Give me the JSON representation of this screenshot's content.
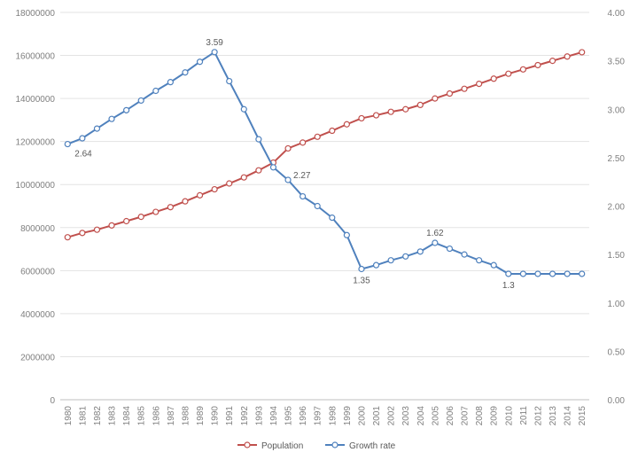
{
  "chart_data": {
    "type": "line",
    "title": "",
    "xlabel": "",
    "ylabel": "",
    "categories": [
      "1980",
      "1981",
      "1982",
      "1983",
      "1984",
      "1985",
      "1986",
      "1987",
      "1988",
      "1989",
      "1990",
      "1991",
      "1992",
      "1993",
      "1994",
      "1995",
      "1996",
      "1997",
      "1998",
      "1999",
      "2000",
      "2001",
      "2002",
      "2003",
      "2004",
      "2005",
      "2006",
      "2007",
      "2008",
      "2009",
      "2010",
      "2011",
      "2012",
      "2013",
      "2014",
      "2015"
    ],
    "y_left": {
      "min": 0,
      "max": 18000000,
      "ticks": [
        "0",
        "2000000",
        "4000000",
        "6000000",
        "8000000",
        "10000000",
        "12000000",
        "14000000",
        "16000000",
        "18000000"
      ]
    },
    "y_right": {
      "min": 0,
      "max": 4,
      "ticks": [
        "0.00",
        "0.50",
        "1.00",
        "1.50",
        "2.00",
        "2.50",
        "3.00",
        "3.50",
        "4.00"
      ]
    },
    "grid": true,
    "legend_position": "bottom",
    "series": [
      {
        "name": "Population",
        "axis": "left",
        "color": "#c0504d",
        "values": [
          7550000,
          7750000,
          7900000,
          8100000,
          8300000,
          8500000,
          8730000,
          8950000,
          9220000,
          9500000,
          9780000,
          10050000,
          10330000,
          10660000,
          11020000,
          11680000,
          11950000,
          12220000,
          12500000,
          12800000,
          13080000,
          13220000,
          13380000,
          13500000,
          13700000,
          14000000,
          14230000,
          14450000,
          14680000,
          14920000,
          15150000,
          15350000,
          15550000,
          15750000,
          15950000,
          16150000
        ]
      },
      {
        "name": "Growth rate",
        "axis": "right",
        "color": "#4f81bd",
        "values": [
          2.64,
          2.7,
          2.8,
          2.9,
          2.99,
          3.09,
          3.19,
          3.28,
          3.38,
          3.49,
          3.59,
          3.29,
          3.0,
          2.69,
          2.4,
          2.27,
          2.1,
          2.0,
          1.88,
          1.7,
          1.35,
          1.39,
          1.44,
          1.48,
          1.53,
          1.62,
          1.56,
          1.5,
          1.44,
          1.39,
          1.3,
          1.3,
          1.3,
          1.3,
          1.3,
          1.3
        ]
      }
    ],
    "data_labels": [
      {
        "series": 1,
        "index": 0,
        "text": "2.64"
      },
      {
        "series": 1,
        "index": 10,
        "text": "3.59"
      },
      {
        "series": 1,
        "index": 15,
        "text": "2.27"
      },
      {
        "series": 1,
        "index": 20,
        "text": "1.35"
      },
      {
        "series": 1,
        "index": 25,
        "text": "1.62"
      },
      {
        "series": 1,
        "index": 30,
        "text": "1.3"
      }
    ]
  }
}
